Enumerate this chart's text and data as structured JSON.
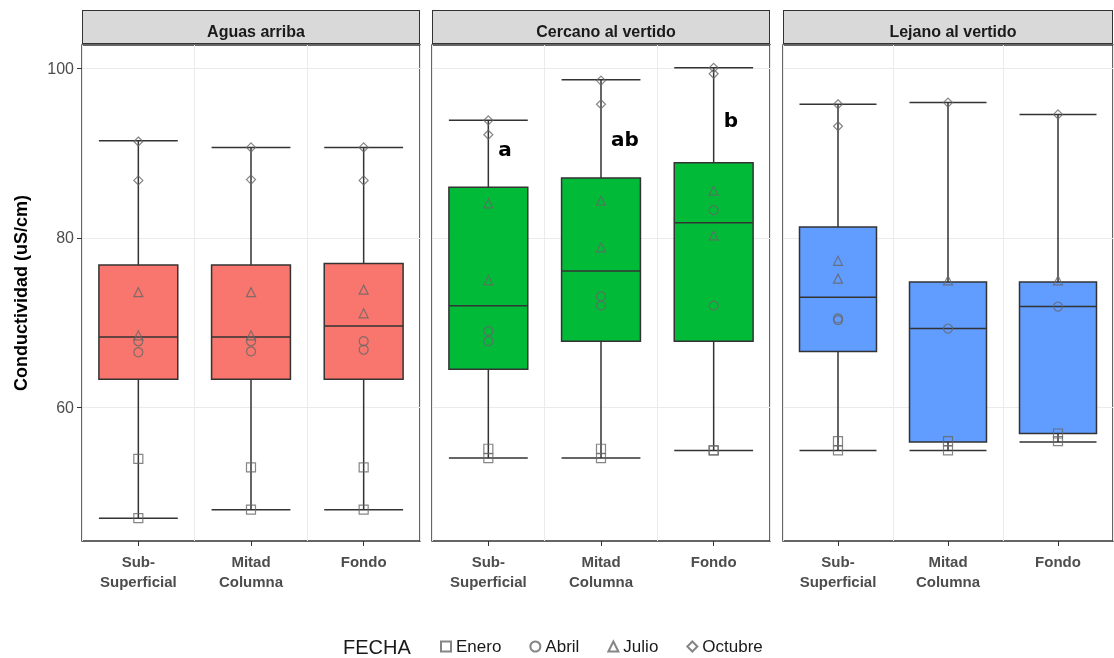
{
  "chart_data": [
    {
      "type": "box",
      "title": "Aguas arriba",
      "ylabel": "Conductividad (uS/cm)",
      "legend_title": "FECHA",
      "legend": "bottom",
      "grid": true,
      "ylim": [
        44.2,
        102.8
      ],
      "yticks": [
        60,
        80,
        100
      ],
      "categories": [
        "Sub-\nSuperficial",
        "Mitad\nColumna",
        "Fondo"
      ],
      "series": [
        {
          "type": "box",
          "color": "#f8766d",
          "boxes": [
            {
              "low": 46.9,
              "q1": 63.3,
              "median": 68.3,
              "q3": 76.8,
              "high": 91.5
            },
            {
              "low": 47.9,
              "q1": 63.3,
              "median": 68.3,
              "q3": 76.8,
              "high": 90.7
            },
            {
              "low": 47.9,
              "q1": 63.3,
              "median": 69.6,
              "q3": 77.0,
              "high": 90.7
            }
          ]
        },
        {
          "type": "scatter",
          "name": "Enero",
          "marker": "square",
          "color": "#666666",
          "x": [
            "Sub-\nSuperficial",
            "Sub-\nSuperficial",
            "Mitad\nColumna",
            "Mitad\nColumna",
            "Fondo",
            "Fondo"
          ],
          "values": [
            53.9,
            46.9,
            52.9,
            47.9,
            52.9,
            47.9
          ]
        },
        {
          "type": "scatter",
          "name": "Abril",
          "marker": "circle",
          "color": "#666666",
          "x": [
            "Sub-\nSuperficial",
            "Sub-\nSuperficial",
            "Mitad\nColumna",
            "Mitad\nColumna",
            "Fondo",
            "Fondo"
          ],
          "values": [
            67.8,
            66.5,
            67.8,
            66.6,
            67.8,
            66.8
          ]
        },
        {
          "type": "scatter",
          "name": "Julio",
          "marker": "triangle",
          "color": "#666666",
          "x": [
            "Sub-\nSuperficial",
            "Sub-\nSuperficial",
            "Mitad\nColumna",
            "Mitad\nColumna",
            "Fondo",
            "Fondo"
          ],
          "values": [
            73.6,
            68.5,
            73.6,
            68.5,
            73.9,
            71.1
          ]
        },
        {
          "type": "scatter",
          "name": "Octubre",
          "marker": "diamond",
          "color": "#666666",
          "x": [
            "Sub-\nSuperficial",
            "Sub-\nSuperficial",
            "Mitad\nColumna",
            "Mitad\nColumna",
            "Fondo",
            "Fondo"
          ],
          "values": [
            91.4,
            86.8,
            90.7,
            86.9,
            90.7,
            86.8
          ]
        }
      ]
    },
    {
      "type": "box",
      "title": "Cercano al vertido",
      "grid": true,
      "tick_labels": "x",
      "ylim": [
        44.2,
        102.8
      ],
      "yticks": [
        60,
        80,
        100
      ],
      "categories": [
        "Sub-\nSuperficial",
        "Mitad\nColumna",
        "Fondo"
      ],
      "annotations": [
        {
          "text": "a",
          "x": "Sub-\nSuperficial",
          "y": 90.5
        },
        {
          "text": "ab",
          "x": "Mitad\nColumna",
          "y": 91.7
        },
        {
          "text": "b",
          "x": "Fondo",
          "y": 93.9
        }
      ],
      "series": [
        {
          "type": "box",
          "color": "#00ba38",
          "boxes": [
            {
              "low": 54.0,
              "q1": 64.5,
              "median": 72.0,
              "q3": 86.0,
              "high": 93.9
            },
            {
              "low": 54.0,
              "q1": 67.8,
              "median": 76.1,
              "q3": 87.1,
              "high": 98.7
            },
            {
              "low": 54.9,
              "q1": 67.8,
              "median": 81.8,
              "q3": 88.9,
              "high": 100.1
            }
          ]
        },
        {
          "type": "scatter",
          "marker": "square",
          "color": "#666666",
          "x": [
            "Sub-\nSuperficial",
            "Sub-\nSuperficial",
            "Mitad\nColumna",
            "Mitad\nColumna",
            "Fondo",
            "Fondo"
          ],
          "values": [
            55.1,
            54.0,
            55.1,
            54.0,
            54.9,
            54.9
          ]
        },
        {
          "type": "scatter",
          "marker": "circle",
          "color": "#666666",
          "x": [
            "Sub-\nSuperficial",
            "Sub-\nSuperficial",
            "Mitad\nColumna",
            "Mitad\nColumna",
            "Fondo",
            "Fondo"
          ],
          "values": [
            69.0,
            67.8,
            73.1,
            72.0,
            83.3,
            72.0
          ]
        },
        {
          "type": "scatter",
          "marker": "triangle",
          "color": "#666666",
          "x": [
            "Sub-\nSuperficial",
            "Sub-\nSuperficial",
            "Mitad\nColumna",
            "Mitad\nColumna",
            "Fondo",
            "Fondo"
          ],
          "values": [
            84.1,
            75.0,
            84.4,
            78.9,
            85.6,
            80.3
          ]
        },
        {
          "type": "scatter",
          "marker": "diamond",
          "color": "#666666",
          "x": [
            "Sub-\nSuperficial",
            "Sub-\nSuperficial",
            "Mitad\nColumna",
            "Mitad\nColumna",
            "Fondo",
            "Fondo"
          ],
          "values": [
            93.9,
            92.2,
            98.6,
            95.8,
            100.1,
            99.4
          ]
        }
      ]
    },
    {
      "type": "box",
      "title": "Lejano al vertido",
      "grid": true,
      "tick_labels": "x",
      "ylim": [
        44.2,
        102.8
      ],
      "yticks": [
        60,
        80,
        100
      ],
      "categories": [
        "Sub-\nSuperficial",
        "Mitad\nColumna",
        "Fondo"
      ],
      "series": [
        {
          "type": "box",
          "color": "#619cff",
          "boxes": [
            {
              "low": 54.9,
              "q1": 66.6,
              "median": 73.0,
              "q3": 81.3,
              "high": 95.8
            },
            {
              "low": 54.9,
              "q1": 55.9,
              "median": 69.3,
              "q3": 74.8,
              "high": 96.0
            },
            {
              "low": 55.9,
              "q1": 56.9,
              "median": 71.9,
              "q3": 74.8,
              "high": 94.6
            }
          ]
        },
        {
          "type": "scatter",
          "marker": "square",
          "color": "#666666",
          "x": [
            "Sub-\nSuperficial",
            "Sub-\nSuperficial",
            "Mitad\nColumna",
            "Mitad\nColumna",
            "Fondo",
            "Fondo"
          ],
          "values": [
            56.0,
            54.9,
            56.0,
            54.9,
            56.9,
            56.0
          ]
        },
        {
          "type": "scatter",
          "marker": "circle",
          "color": "#666666",
          "x": [
            "Sub-\nSuperficial",
            "Sub-\nSuperficial",
            "Mitad\nColumna",
            "Fondo"
          ],
          "values": [
            70.5,
            70.3,
            69.3,
            71.9
          ]
        },
        {
          "type": "scatter",
          "marker": "triangle",
          "color": "#666666",
          "x": [
            "Sub-\nSuperficial",
            "Sub-\nSuperficial",
            "Mitad\nColumna",
            "Fondo"
          ],
          "values": [
            77.3,
            75.2,
            75.0,
            75.0
          ]
        },
        {
          "type": "scatter",
          "marker": "diamond",
          "color": "#666666",
          "x": [
            "Sub-\nSuperficial",
            "Sub-\nSuperficial",
            "Mitad\nColumna",
            "Fondo"
          ],
          "values": [
            95.8,
            93.2,
            96.0,
            94.6
          ]
        }
      ]
    }
  ]
}
